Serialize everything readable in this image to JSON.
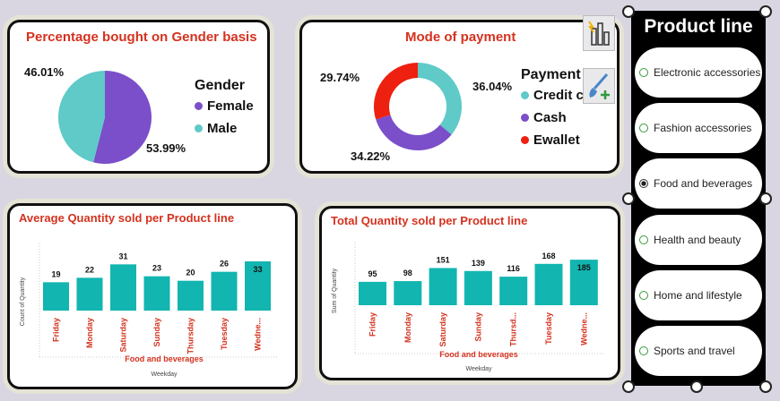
{
  "gender_card": {
    "title": "Percentage bought on Gender basis",
    "legend_title": "Gender",
    "legend": [
      {
        "label": "Female",
        "color": "#7b4fc9"
      },
      {
        "label": "Male",
        "color": "#5fcac8"
      }
    ],
    "labels": {
      "female": "53.99%",
      "male": "46.01%"
    }
  },
  "payment_card": {
    "title": "Mode of payment",
    "legend_title": "Payment",
    "legend": [
      {
        "label": "Credit c",
        "color": "#5fcac8"
      },
      {
        "label": "Cash",
        "color": "#7b4fc9"
      },
      {
        "label": "Ewallet",
        "color": "#ee2010"
      }
    ],
    "labels": {
      "credit": "36.04%",
      "cash": "34.22%",
      "ewallet": "29.74%"
    }
  },
  "avg_card": {
    "title": "Average Quantity sold per Product line",
    "ylabel": "Count of Quantity",
    "filter_label": "Food and beverages",
    "xlabel": "Weekday"
  },
  "total_card": {
    "title": "Total Quantity sold per Product line",
    "ylabel": "Sum of Quantity",
    "filter_label": "Food and beverages",
    "xlabel": "Weekday"
  },
  "slicer": {
    "title": "Product line",
    "items": [
      {
        "label": "Electronic accessories",
        "selected": false
      },
      {
        "label": "Fashion accessories",
        "selected": false
      },
      {
        "label": "Food and beverages",
        "selected": true
      },
      {
        "label": "Health and beauty",
        "selected": false
      },
      {
        "label": "Home and lifestyle",
        "selected": false
      },
      {
        "label": "Sports and travel",
        "selected": false
      }
    ]
  },
  "chart_data": [
    {
      "type": "pie",
      "title": "Percentage bought on Gender basis",
      "legend_title": "Gender",
      "categories": [
        "Female",
        "Male"
      ],
      "values": [
        53.99,
        46.01
      ],
      "colors": [
        "#7b4fc9",
        "#5fcac8"
      ]
    },
    {
      "type": "pie",
      "title": "Mode of payment",
      "legend_title": "Payment",
      "categories": [
        "Credit card",
        "Cash",
        "Ewallet"
      ],
      "values": [
        36.04,
        34.22,
        29.74
      ],
      "colors": [
        "#5fcac8",
        "#7b4fc9",
        "#ee2010"
      ]
    },
    {
      "type": "bar",
      "title": "Average Quantity sold per Product line",
      "categories": [
        "Friday",
        "Monday",
        "Saturday",
        "Sunday",
        "Thursday",
        "Tuesday",
        "Wedne..."
      ],
      "values": [
        19,
        22,
        31,
        23,
        20,
        26,
        33
      ],
      "xlabel": "Weekday",
      "ylabel": "Count of Quantity",
      "ylim": [
        0,
        36
      ],
      "color": "#12b5b0"
    },
    {
      "type": "bar",
      "title": "Total Quantity sold per Product line",
      "categories": [
        "Friday",
        "Monday",
        "Saturday",
        "Sunday",
        "Thursd...",
        "Tuesday",
        "Wedne..."
      ],
      "values": [
        95,
        98,
        151,
        139,
        116,
        168,
        185
      ],
      "xlabel": "Weekday",
      "ylabel": "Sum of Quantity",
      "ylim": [
        0,
        200
      ],
      "color": "#12b5b0"
    }
  ]
}
